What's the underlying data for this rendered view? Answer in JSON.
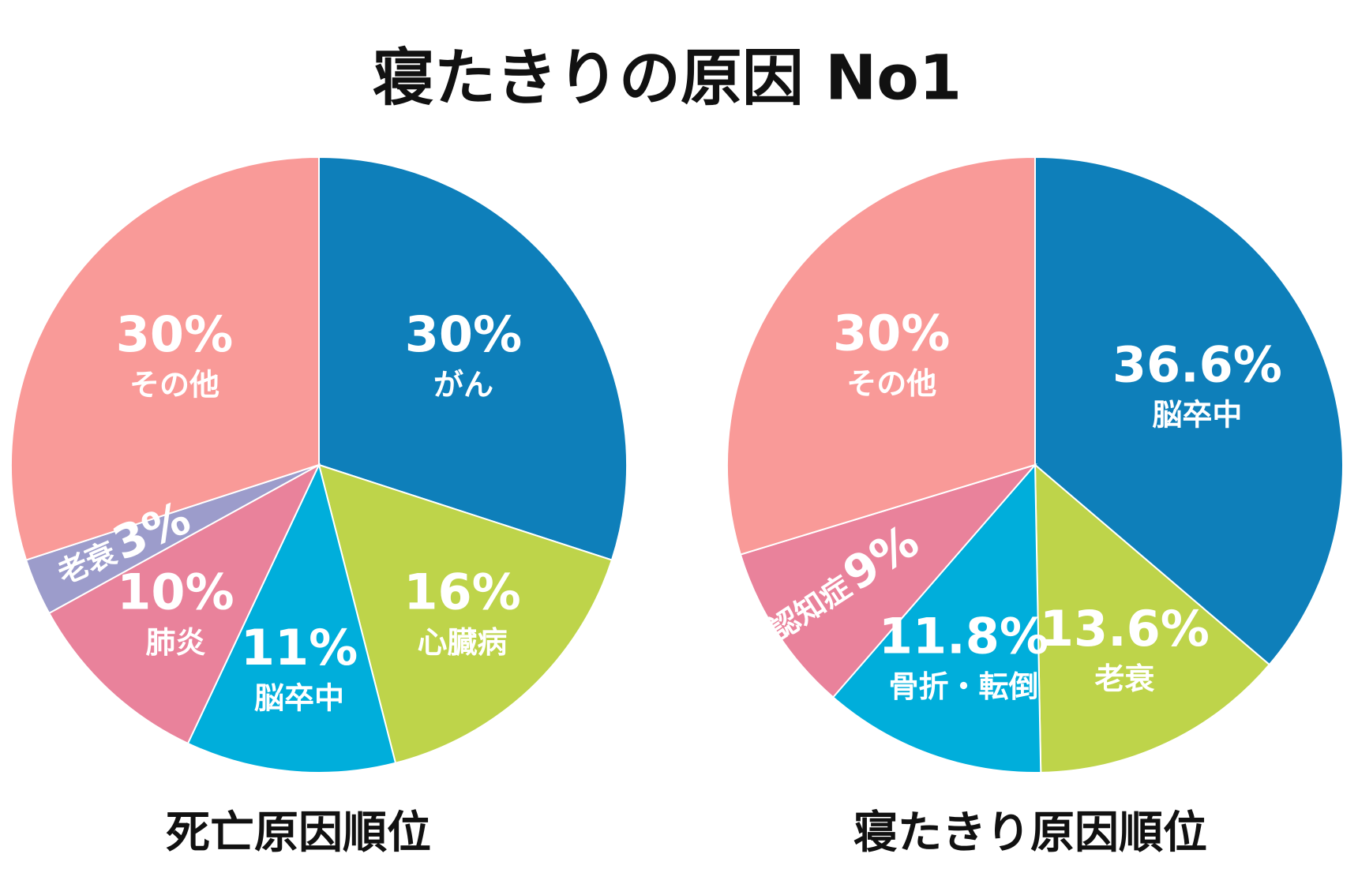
{
  "title": "寝たきりの原因 No1",
  "chart_data": [
    {
      "type": "pie",
      "title": "死亡原因順位",
      "categories": [
        "がん",
        "心臓病",
        "脳卒中",
        "肺炎",
        "老衰",
        "その他"
      ],
      "values": [
        30,
        16,
        11,
        10,
        3,
        30
      ],
      "value_labels": [
        "30%",
        "16%",
        "11%",
        "10%",
        "3%",
        "30%"
      ],
      "colors": [
        "#0e7fba",
        "#bed44a",
        "#00aedb",
        "#e9829b",
        "#9c9ccb",
        "#f99a98"
      ]
    },
    {
      "type": "pie",
      "title": "寝たきり原因順位",
      "categories": [
        "脳卒中",
        "老衰",
        "骨折・転倒",
        "認知症",
        "その他"
      ],
      "values": [
        36.6,
        13.6,
        11.8,
        9,
        30
      ],
      "value_labels": [
        "36.6%",
        "13.6%",
        "11.8%",
        "9%",
        "30%"
      ],
      "colors": [
        "#0e7fba",
        "#bed44a",
        "#00aedb",
        "#e9829b",
        "#f99a98"
      ]
    }
  ]
}
